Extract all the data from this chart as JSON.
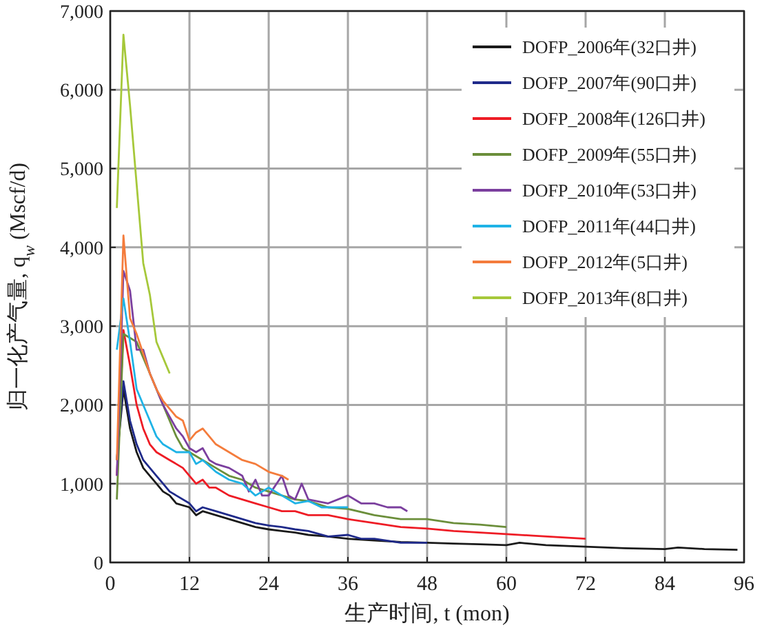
{
  "chart_data": {
    "type": "line",
    "xlabel": "生产时间, t (mon)",
    "ylabel": "归一化产气量, q$_{w}$ (Mscf/d)",
    "xlim": [
      0,
      96
    ],
    "xticks": [
      0,
      12,
      24,
      36,
      48,
      60,
      72,
      84,
      96
    ],
    "ylim": [
      0,
      7000
    ],
    "yticks": [
      0,
      {
        "value": 1000,
        "label": "1,000"
      },
      {
        "value": 2000,
        "label": "2,000"
      },
      {
        "value": 3000,
        "label": "3,000"
      },
      {
        "value": 4000,
        "label": "4,000"
      },
      {
        "value": 5000,
        "label": "5,000"
      },
      {
        "value": 6000,
        "label": "6,000"
      },
      {
        "value": 7000,
        "label": "7,000"
      }
    ],
    "grid": true,
    "legend": "top right",
    "line_style": "solid",
    "marker": "none",
    "series": [
      {
        "name": "DOFP_2006年(32口井)",
        "color": "#1a1a1a",
        "x": [
          1,
          2,
          3,
          4,
          5,
          6,
          7,
          8,
          9,
          10,
          12,
          13,
          14,
          16,
          18,
          20,
          22,
          24,
          26,
          28,
          30,
          33,
          36,
          40,
          44,
          48,
          52,
          56,
          60,
          62,
          66,
          72,
          78,
          84,
          86,
          90,
          95
        ],
        "values": [
          1300,
          2200,
          1700,
          1400,
          1200,
          1100,
          1000,
          900,
          850,
          750,
          700,
          600,
          650,
          600,
          550,
          500,
          450,
          420,
          400,
          380,
          350,
          330,
          300,
          280,
          260,
          250,
          240,
          230,
          220,
          250,
          220,
          200,
          180,
          170,
          190,
          170,
          160
        ]
      },
      {
        "name": "DOFP_2007年(90口井)",
        "color": "#1f2a8a",
        "x": [
          1,
          2,
          3,
          4,
          5,
          6,
          7,
          8,
          9,
          10,
          12,
          13,
          14,
          16,
          18,
          20,
          22,
          24,
          26,
          28,
          30,
          33,
          36,
          38,
          40,
          44,
          48
        ],
        "values": [
          1300,
          2300,
          1800,
          1500,
          1300,
          1200,
          1100,
          1000,
          900,
          850,
          750,
          650,
          700,
          650,
          600,
          550,
          500,
          470,
          450,
          420,
          400,
          330,
          350,
          300,
          300,
          250,
          250
        ]
      },
      {
        "name": "DOFP_2008年(126口井)",
        "color": "#ee1c25",
        "x": [
          1,
          2,
          3,
          4,
          5,
          6,
          7,
          8,
          9,
          10,
          11,
          12,
          13,
          14,
          15,
          16,
          18,
          20,
          22,
          24,
          26,
          28,
          30,
          33,
          36,
          40,
          44,
          48,
          52,
          56,
          60,
          64,
          68,
          72
        ],
        "values": [
          1100,
          2950,
          2500,
          2000,
          1700,
          1500,
          1400,
          1350,
          1300,
          1250,
          1200,
          1100,
          1000,
          1050,
          950,
          950,
          850,
          800,
          750,
          700,
          650,
          650,
          600,
          600,
          550,
          500,
          450,
          430,
          400,
          380,
          360,
          340,
          320,
          300
        ]
      },
      {
        "name": "DOFP_2009年(55口井)",
        "color": "#6b8e3a",
        "x": [
          1,
          2,
          3,
          4,
          5,
          6,
          7,
          8,
          9,
          10,
          11,
          12,
          13,
          14,
          16,
          18,
          20,
          22,
          24,
          26,
          28,
          30,
          33,
          36,
          40,
          44,
          48,
          52,
          56,
          60
        ],
        "values": [
          800,
          2900,
          2850,
          2800,
          2600,
          2400,
          2200,
          2000,
          1800,
          1600,
          1450,
          1400,
          1350,
          1300,
          1200,
          1100,
          1050,
          950,
          900,
          850,
          800,
          780,
          700,
          680,
          600,
          550,
          550,
          500,
          480,
          450
        ]
      },
      {
        "name": "DOFP_2010年(53口井)",
        "color": "#7b3f9e",
        "x": [
          1,
          2,
          3,
          4,
          5,
          6,
          7,
          8,
          9,
          10,
          11,
          12,
          13,
          14,
          15,
          16,
          18,
          20,
          21,
          22,
          23,
          24,
          26,
          27,
          28,
          29,
          30,
          33,
          36,
          38,
          40,
          42,
          44,
          45
        ],
        "values": [
          1100,
          3700,
          3450,
          2700,
          2700,
          2400,
          2200,
          2000,
          1850,
          1700,
          1600,
          1450,
          1400,
          1450,
          1300,
          1250,
          1200,
          1100,
          900,
          1050,
          850,
          850,
          1100,
          850,
          800,
          1000,
          800,
          750,
          850,
          750,
          750,
          700,
          700,
          650
        ]
      },
      {
        "name": "DOFP_2011年(44口井)",
        "color": "#1fb3e6",
        "x": [
          1,
          2,
          3,
          4,
          5,
          6,
          7,
          8,
          9,
          10,
          12,
          13,
          14,
          16,
          18,
          20,
          22,
          24,
          26,
          28,
          30,
          32,
          34,
          36
        ],
        "values": [
          2700,
          3350,
          2800,
          2200,
          2000,
          1800,
          1600,
          1500,
          1450,
          1400,
          1400,
          1250,
          1300,
          1150,
          1050,
          1000,
          850,
          950,
          850,
          750,
          780,
          700,
          700,
          700
        ]
      },
      {
        "name": "DOFP_2012年(5口井)",
        "color": "#f47c3c",
        "x": [
          1,
          2,
          3,
          4,
          5,
          6,
          7,
          8,
          9,
          10,
          11,
          12,
          13,
          14,
          15,
          16,
          18,
          20,
          22,
          24,
          26,
          27
        ],
        "values": [
          1300,
          4150,
          3100,
          2900,
          2650,
          2400,
          2200,
          2050,
          1950,
          1850,
          1800,
          1550,
          1650,
          1700,
          1600,
          1500,
          1400,
          1300,
          1250,
          1150,
          1100,
          1050
        ]
      },
      {
        "name": "DOFP_2013年(8口井)",
        "color": "#a6c83a",
        "x": [
          1,
          2,
          3,
          4,
          5,
          6,
          7,
          8,
          9
        ],
        "values": [
          4500,
          6700,
          5800,
          4800,
          3800,
          3400,
          2800,
          2600,
          2400
        ]
      }
    ]
  }
}
